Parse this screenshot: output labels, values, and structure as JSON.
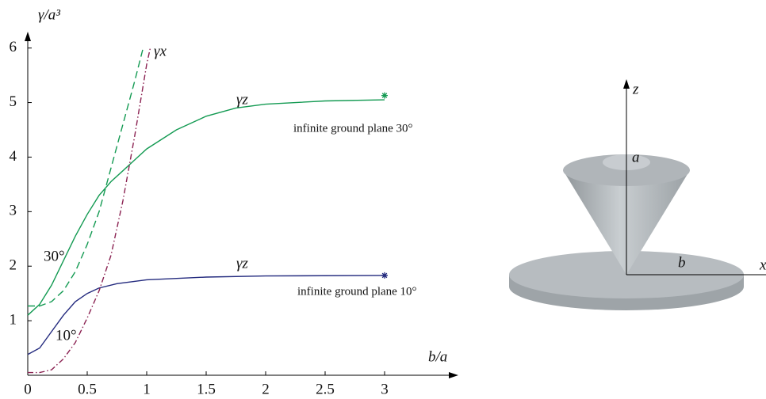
{
  "chart_data": {
    "type": "line",
    "xlabel": "b/a",
    "ylabel": "γ/a³",
    "xlim": [
      0,
      3.6
    ],
    "ylim": [
      0,
      6.3
    ],
    "xticks": [
      0,
      0.5,
      1,
      1.5,
      2,
      2.5,
      3
    ],
    "yticks": [
      1,
      2,
      3,
      4,
      5,
      6
    ],
    "series": [
      {
        "name": "γz",
        "color": "#139a52",
        "dash": "solid",
        "x": [
          0,
          0.1,
          0.2,
          0.3,
          0.4,
          0.5,
          0.6,
          0.7,
          0.8,
          0.9,
          1.0,
          1.25,
          1.5,
          1.75,
          2,
          2.5,
          3
        ],
        "values": [
          1.1,
          1.3,
          1.65,
          2.1,
          2.55,
          2.95,
          3.3,
          3.55,
          3.75,
          3.95,
          4.15,
          4.5,
          4.75,
          4.9,
          4.97,
          5.03,
          5.05
        ]
      },
      {
        "name": "γx",
        "color": "#139a52",
        "dash": "dashed",
        "x": [
          0,
          0.1,
          0.2,
          0.3,
          0.4,
          0.5,
          0.6,
          0.7,
          0.8,
          0.9,
          0.97
        ],
        "values": [
          1.27,
          1.27,
          1.35,
          1.55,
          1.9,
          2.4,
          3.0,
          3.8,
          4.6,
          5.4,
          6.0
        ]
      },
      {
        "name": "γz",
        "color": "#232a7e",
        "dash": "solid",
        "x": [
          0,
          0.1,
          0.2,
          0.3,
          0.4,
          0.5,
          0.6,
          0.75,
          1,
          1.5,
          2,
          3
        ],
        "values": [
          0.38,
          0.5,
          0.8,
          1.1,
          1.35,
          1.5,
          1.6,
          1.68,
          1.75,
          1.8,
          1.82,
          1.83
        ]
      },
      {
        "name": "γx",
        "color": "#8b2252",
        "dash": "dashdot",
        "x": [
          0,
          0.1,
          0.2,
          0.3,
          0.4,
          0.5,
          0.6,
          0.7,
          0.8,
          0.9,
          1.0,
          1.03
        ],
        "values": [
          0.05,
          0.05,
          0.1,
          0.3,
          0.6,
          1.05,
          1.55,
          2.2,
          3.2,
          4.4,
          5.7,
          6.0
        ]
      }
    ],
    "angle_labels": [
      "30°",
      "10°"
    ],
    "markers": [
      {
        "name": "infinite ground plane 30°",
        "color": "#139a52",
        "x": 3,
        "value": 5.13
      },
      {
        "name": "infinite ground plane 10°",
        "color": "#232a7e",
        "x": 3,
        "value": 1.83
      }
    ]
  },
  "diagram": {
    "labels": [
      "z",
      "a",
      "b",
      "x"
    ]
  }
}
